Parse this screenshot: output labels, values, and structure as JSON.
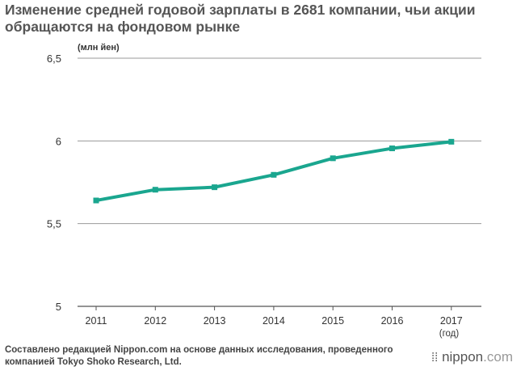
{
  "title": "Изменение средней годовой зарплаты в 2681 компании, чьи акции обращаются на фондовом рынке",
  "footer": {
    "source": "Составлено редакцией Nippon.com на основе данных исследования, проведенного компанией Tokyo Shoko Research, Ltd.",
    "brand_dots": "⁞⁞",
    "brand_name": "nippon",
    "brand_suffix": ".com"
  },
  "chart_data": {
    "type": "line",
    "title": "Изменение средней годовой зарплаты в 2681 компании, чьи акции обращаются на фондовом рынке",
    "ylabel": "(млн йен)",
    "xlabel": "(год)",
    "ylim": [
      5,
      6.5
    ],
    "yticks": [
      5,
      5.5,
      6,
      6.5
    ],
    "ytick_labels": [
      "5",
      "5,5",
      "6",
      "6,5"
    ],
    "categories": [
      "2011",
      "2012",
      "2013",
      "2014",
      "2015",
      "2016",
      "2017"
    ],
    "series": [
      {
        "values": [
          5.64,
          5.705,
          5.72,
          5.795,
          5.895,
          5.955,
          5.995
        ]
      }
    ],
    "line_color": "#1aa68f",
    "grid": true,
    "legend": "none"
  }
}
